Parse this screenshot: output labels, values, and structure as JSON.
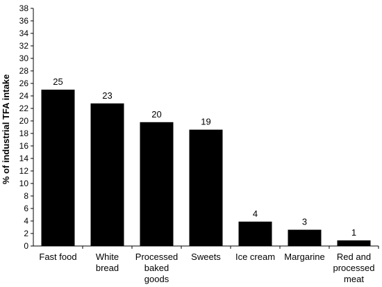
{
  "chart_data": {
    "type": "bar",
    "title": "",
    "xlabel": "",
    "ylabel": "% of industrial TFA intake",
    "ylim": [
      0,
      38
    ],
    "ytick_step": 2,
    "grid": false,
    "legend": "none",
    "categories": [
      [
        "Fast food"
      ],
      [
        "White",
        "bread"
      ],
      [
        "Processed",
        "baked",
        "goods"
      ],
      [
        "Sweets"
      ],
      [
        "Ice cream"
      ],
      [
        "Margarine"
      ],
      [
        "Red and",
        "processed",
        "meat"
      ]
    ],
    "values": [
      25,
      22.8,
      19.8,
      18.6,
      3.9,
      2.6,
      0.9
    ],
    "data_labels": [
      "25",
      "23",
      "20",
      "19",
      "4",
      "3",
      "1"
    ],
    "bar_color": "#000000"
  }
}
